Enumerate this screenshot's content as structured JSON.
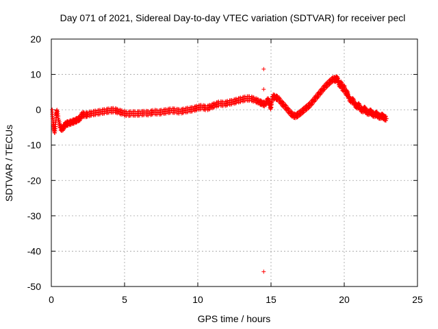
{
  "chart_data": {
    "type": "scatter",
    "title": "Day 071 of 2021, Sidereal Day-to-day VTEC variation (SDTVAR) for receiver pecl",
    "xlabel": "GPS time / hours",
    "ylabel": "SDTVAR / TECUs",
    "xlim": [
      0,
      25
    ],
    "ylim": [
      -50,
      20
    ],
    "x_ticks": [
      0,
      5,
      10,
      15,
      20,
      25
    ],
    "x_tick_labels": [
      "0",
      "5",
      "10",
      "15",
      "20",
      "25"
    ],
    "y_ticks": [
      -50,
      -40,
      -30,
      -20,
      -10,
      0,
      10,
      20
    ],
    "y_tick_labels": [
      "-50",
      "-40",
      "-30",
      "-20",
      "-10",
      "0",
      "10",
      "20"
    ],
    "grid": true,
    "marker": "+",
    "series_color": "#ff0000",
    "series": [
      {
        "name": "SDTVAR",
        "points": [
          [
            0.05,
            0.0
          ],
          [
            0.1,
            -2.5
          ],
          [
            0.15,
            -4.5
          ],
          [
            0.2,
            -5.8
          ],
          [
            0.25,
            -6.0
          ],
          [
            0.3,
            -3.5
          ],
          [
            0.35,
            -1.0
          ],
          [
            0.4,
            -0.5
          ],
          [
            0.5,
            -3.0
          ],
          [
            0.6,
            -5.0
          ],
          [
            0.75,
            -5.5
          ],
          [
            0.9,
            -4.5
          ],
          [
            1.0,
            -4.0
          ],
          [
            1.2,
            -3.8
          ],
          [
            1.4,
            -3.5
          ],
          [
            1.6,
            -3.2
          ],
          [
            1.8,
            -2.8
          ],
          [
            2.0,
            -2.3
          ],
          [
            2.1,
            -1.2
          ],
          [
            2.3,
            -1.5
          ],
          [
            2.5,
            -1.3
          ],
          [
            2.8,
            -1.0
          ],
          [
            3.1,
            -0.8
          ],
          [
            3.4,
            -0.6
          ],
          [
            3.7,
            -0.4
          ],
          [
            4.0,
            -0.2
          ],
          [
            4.3,
            -0.1
          ],
          [
            4.6,
            -0.5
          ],
          [
            4.9,
            -0.9
          ],
          [
            5.2,
            -1.2
          ],
          [
            5.5,
            -1.0
          ],
          [
            5.8,
            -1.1
          ],
          [
            6.1,
            -1.0
          ],
          [
            6.4,
            -0.9
          ],
          [
            6.7,
            -1.0
          ],
          [
            7.0,
            -0.6
          ],
          [
            7.3,
            -0.8
          ],
          [
            7.6,
            -0.6
          ],
          [
            7.9,
            -0.4
          ],
          [
            8.2,
            -0.2
          ],
          [
            8.5,
            -0.3
          ],
          [
            8.8,
            -0.5
          ],
          [
            9.1,
            -0.2
          ],
          [
            9.4,
            0.0
          ],
          [
            9.7,
            0.2
          ],
          [
            10.0,
            0.6
          ],
          [
            10.3,
            0.8
          ],
          [
            10.6,
            0.4
          ],
          [
            10.9,
            0.9
          ],
          [
            11.2,
            1.4
          ],
          [
            11.5,
            1.8
          ],
          [
            11.8,
            1.6
          ],
          [
            12.1,
            2.0
          ],
          [
            12.4,
            2.2
          ],
          [
            12.7,
            2.6
          ],
          [
            13.0,
            2.9
          ],
          [
            13.3,
            3.2
          ],
          [
            13.6,
            3.2
          ],
          [
            13.9,
            2.8
          ],
          [
            14.2,
            2.2
          ],
          [
            14.4,
            1.8
          ],
          [
            14.5,
            -45.8
          ],
          [
            14.5,
            5.8
          ],
          [
            14.5,
            11.5
          ],
          [
            14.6,
            1.5
          ],
          [
            14.8,
            3.0
          ],
          [
            14.9,
            1.5
          ],
          [
            15.0,
            0.5
          ],
          [
            15.1,
            3.8
          ],
          [
            15.3,
            3.5
          ],
          [
            15.5,
            3.2
          ],
          [
            15.7,
            2.0
          ],
          [
            15.9,
            1.2
          ],
          [
            16.1,
            0.2
          ],
          [
            16.3,
            -0.8
          ],
          [
            16.5,
            -1.6
          ],
          [
            16.7,
            -1.8
          ],
          [
            16.9,
            -1.2
          ],
          [
            17.1,
            -0.6
          ],
          [
            17.3,
            0.2
          ],
          [
            17.5,
            0.8
          ],
          [
            17.7,
            1.6
          ],
          [
            17.9,
            2.6
          ],
          [
            18.1,
            3.6
          ],
          [
            18.3,
            4.6
          ],
          [
            18.5,
            5.6
          ],
          [
            18.7,
            6.6
          ],
          [
            18.9,
            7.4
          ],
          [
            19.1,
            8.2
          ],
          [
            19.3,
            8.8
          ],
          [
            19.5,
            9.0
          ],
          [
            19.6,
            8.0
          ],
          [
            19.7,
            6.8
          ],
          [
            19.9,
            5.6
          ],
          [
            20.1,
            4.6
          ],
          [
            20.3,
            3.4
          ],
          [
            20.5,
            2.4
          ],
          [
            20.7,
            1.6
          ],
          [
            20.9,
            0.8
          ],
          [
            21.1,
            0.2
          ],
          [
            21.3,
            -0.2
          ],
          [
            21.5,
            -0.6
          ],
          [
            21.7,
            -0.9
          ],
          [
            21.9,
            -1.2
          ],
          [
            22.1,
            -1.5
          ],
          [
            22.3,
            -1.8
          ],
          [
            22.5,
            -2.0
          ],
          [
            22.7,
            -2.3
          ],
          [
            22.9,
            -2.5
          ],
          [
            19.4,
            8.4
          ],
          [
            19.8,
            7.6
          ],
          [
            20.0,
            6.6
          ],
          [
            20.2,
            5.0
          ],
          [
            20.6,
            2.8
          ],
          [
            21.0,
            1.4
          ],
          [
            21.4,
            0.4
          ],
          [
            21.8,
            -0.4
          ],
          [
            22.2,
            -1.0
          ],
          [
            22.6,
            -1.6
          ]
        ]
      }
    ]
  }
}
